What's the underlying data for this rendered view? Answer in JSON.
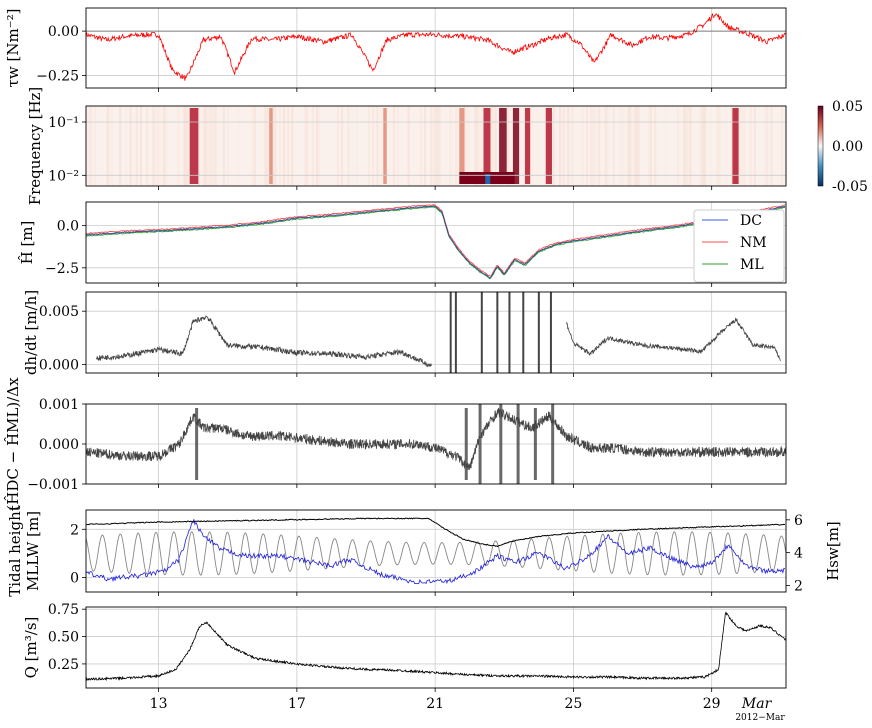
{
  "figure": {
    "date_note": "2012−Mar",
    "x_ticks": [
      {
        "x": 13,
        "label": "13"
      },
      {
        "x": 17,
        "label": "17"
      },
      {
        "x": 21,
        "label": "21"
      },
      {
        "x": 25,
        "label": "25"
      },
      {
        "x": 29,
        "label": "29"
      },
      {
        "x": 30.3,
        "label": "Mar"
      }
    ],
    "x_range": [
      10.9,
      31.15
    ]
  },
  "colors": {
    "tau": "#ff0000",
    "dark": "#444444",
    "dc": "#3b5bdb",
    "nm": "#ff4d4d",
    "ml": "#2ca02c",
    "tide": "#000000",
    "mllw": "#888888",
    "hsw": "#1f1fdd",
    "grid": "#cccccc"
  },
  "panels": {
    "tau": {
      "ylabel": "τw [Nm⁻²]",
      "ylim": [
        -0.32,
        0.13
      ],
      "ticks": [
        {
          "v": 0.0,
          "label": "0.00"
        },
        {
          "v": -0.25,
          "label": "−0.25"
        }
      ]
    },
    "spectro": {
      "ylabel": "Frequency [Hz]",
      "ylim_log": [
        -2.2,
        -0.7
      ],
      "ticks": [
        {
          "v": -1,
          "label": "10⁻¹"
        },
        {
          "v": -2,
          "label": "10⁻²"
        }
      ],
      "colorbar": {
        "ticks": [
          {
            "v": 0.05,
            "label": "0.05"
          },
          {
            "v": 0.0,
            "label": "0.00"
          },
          {
            "v": -0.05,
            "label": "-0.05"
          }
        ]
      }
    },
    "hhat": {
      "ylabel": "Ĥ [m]",
      "ylim": [
        -3.4,
        1.4
      ],
      "ticks": [
        {
          "v": 0.0,
          "label": "0.0"
        },
        {
          "v": -2.5,
          "label": "−2.5"
        }
      ],
      "legend": [
        "DC",
        "NM",
        "ML"
      ]
    },
    "dhdt": {
      "ylabel": "dh/dt [m/h]",
      "ylim": [
        -0.0008,
        0.0068
      ],
      "ticks": [
        {
          "v": 0.005,
          "label": "0.005"
        },
        {
          "v": 0.0,
          "label": "0.000"
        }
      ]
    },
    "diff": {
      "ylabel": "(ĤDC − ĤML)/Δx",
      "ylim": [
        -0.001,
        0.001
      ],
      "ticks": [
        {
          "v": 0.001,
          "label": "0.001"
        },
        {
          "v": 0.0,
          "label": "0.000"
        },
        {
          "v": -0.001,
          "label": "−0.001"
        }
      ]
    },
    "tide": {
      "ylabel1": "Tidal height",
      "ylabel2": "MLLW [m]",
      "ylim": [
        -0.6,
        2.8
      ],
      "ticks": [
        {
          "v": 2,
          "label": "2"
        },
        {
          "v": 0,
          "label": "0"
        }
      ],
      "ylabel_right": "Hsw[m]",
      "ylim_right": [
        1.6,
        6.6
      ],
      "ticks_right": [
        {
          "v": 6,
          "label": "6"
        },
        {
          "v": 4,
          "label": "4"
        },
        {
          "v": 2,
          "label": "2"
        }
      ]
    },
    "q": {
      "ylabel": "Q [m³/s]",
      "ylim": [
        0.03,
        0.77
      ],
      "ticks": [
        {
          "v": 0.75,
          "label": "0.75"
        },
        {
          "v": 0.5,
          "label": "0.50"
        },
        {
          "v": 0.25,
          "label": "0.25"
        }
      ]
    }
  },
  "chart_data": [
    {
      "type": "line",
      "ylabel": "τw [Nm⁻²]",
      "series": [
        {
          "x": [
            10.9,
            11.5,
            12,
            12.6,
            13.0,
            13.4,
            13.8,
            14.3,
            14.8,
            15.2,
            15.7,
            16.3,
            17.0,
            17.8,
            18.6,
            19.2,
            19.6,
            20.2,
            21.0,
            21.8,
            22.5,
            23.2,
            23.8,
            24.3,
            24.8,
            25.2,
            25.6,
            26.1,
            26.7,
            27.2,
            27.7,
            28.3,
            28.8,
            29.1,
            29.5,
            30.0,
            30.6,
            31.15
          ],
          "y": [
            -0.02,
            -0.05,
            -0.03,
            -0.02,
            -0.02,
            -0.22,
            -0.27,
            -0.05,
            -0.03,
            -0.23,
            -0.04,
            -0.05,
            -0.03,
            -0.06,
            -0.02,
            -0.22,
            -0.05,
            -0.02,
            -0.02,
            -0.03,
            -0.05,
            -0.12,
            -0.08,
            -0.04,
            -0.02,
            -0.07,
            -0.18,
            -0.02,
            -0.08,
            -0.03,
            -0.04,
            -0.02,
            0.04,
            0.1,
            0.02,
            -0.01,
            -0.06,
            -0.02
          ]
        }
      ]
    },
    {
      "type": "heatmap",
      "ylabel": "Frequency [Hz]",
      "bands": [
        {
          "x": 13.9,
          "w": 0.25,
          "v": 0.03
        },
        {
          "x": 16.2,
          "w": 0.1,
          "v": 0.01
        },
        {
          "x": 19.5,
          "w": 0.1,
          "v": 0.01
        },
        {
          "x": 21.7,
          "w": 0.15,
          "v": 0.02
        },
        {
          "x": 22.4,
          "w": 0.2,
          "v": 0.03
        },
        {
          "x": 22.85,
          "w": 0.22,
          "v": 0.05
        },
        {
          "x": 23.25,
          "w": 0.18,
          "v": 0.05
        },
        {
          "x": 23.6,
          "w": 0.15,
          "v": 0.04
        },
        {
          "x": 24.2,
          "w": 0.18,
          "v": 0.04
        },
        {
          "x": 29.6,
          "w": 0.18,
          "v": 0.035
        }
      ]
    },
    {
      "type": "line",
      "ylabel": "Ĥ [m]",
      "series": [
        {
          "name": "DC",
          "x": [
            10.9,
            12,
            13.5,
            15,
            16,
            17,
            18,
            19,
            20,
            20.5,
            21.0,
            21.2,
            21.4,
            21.7,
            22.0,
            22.3,
            22.6,
            22.8,
            23.0,
            23.3,
            23.6,
            24.0,
            24.5,
            25,
            26,
            27,
            28,
            29,
            30,
            31.15
          ],
          "y": [
            -0.55,
            -0.4,
            -0.25,
            -0.05,
            0.15,
            0.45,
            0.6,
            0.8,
            1.0,
            1.1,
            1.15,
            0.8,
            -0.6,
            -1.5,
            -2.2,
            -2.7,
            -3.1,
            -2.4,
            -2.9,
            -2.0,
            -2.3,
            -1.5,
            -1.1,
            -0.9,
            -0.6,
            -0.3,
            -0.05,
            0.3,
            0.7,
            1.15
          ]
        },
        {
          "name": "NM",
          "x": [
            10.9,
            31.15
          ],
          "y": [
            -0.55,
            1.15
          ]
        },
        {
          "name": "ML",
          "x": [
            10.9,
            31.15
          ],
          "y": [
            -0.55,
            1.15
          ]
        }
      ]
    },
    {
      "type": "line",
      "ylabel": "dh/dt [m/h]",
      "series": [
        {
          "x": [
            11.2,
            12,
            13,
            13.7,
            14.0,
            14.4,
            15,
            16,
            17,
            18,
            19,
            20,
            20.8,
            21.5,
            21.8,
            22.2,
            22.6,
            23.0,
            23.5,
            24,
            24.5,
            25,
            25.5,
            26,
            27,
            28,
            28.7,
            29.2,
            29.7,
            30.2,
            30.8,
            31.0
          ],
          "y": [
            0.0006,
            0.0008,
            0.0014,
            0.001,
            0.004,
            0.0045,
            0.0018,
            0.0016,
            0.0011,
            0.001,
            0.0007,
            0.0012,
            0.0,
            -0.0008,
            0.0068,
            -0.0008,
            0.0068,
            0.0068,
            -0.0008,
            0.0068,
            0.0068,
            0.002,
            0.001,
            0.0025,
            0.0018,
            0.0015,
            0.0012,
            0.0028,
            0.0042,
            0.0018,
            0.0016,
            0.0004
          ]
        }
      ]
    },
    {
      "type": "line",
      "ylabel": "(ĤDC − ĤML)/Δx",
      "series": [
        {
          "x": [
            10.9,
            12,
            13,
            13.6,
            14.0,
            14.3,
            14.8,
            15.5,
            16.5,
            17.5,
            18.5,
            19.5,
            20.5,
            21.0,
            21.6,
            22.0,
            22.3,
            22.8,
            23.3,
            23.8,
            24.3,
            24.8,
            25.5,
            26.2,
            27,
            28,
            29,
            30,
            31.15
          ],
          "y": [
            -0.0002,
            -0.0003,
            -0.0003,
            0.0,
            0.0007,
            0.0004,
            0.0004,
            0.0002,
            0.0002,
            0.0001,
            0.0,
            0.0,
            0.0,
            -0.0001,
            -0.0003,
            -0.0006,
            0.0002,
            0.0008,
            0.0006,
            0.0004,
            0.0007,
            0.0002,
            -0.0001,
            -0.0001,
            -0.0002,
            -0.0002,
            -0.0002,
            -0.0002,
            -0.0002
          ]
        }
      ]
    },
    {
      "type": "line",
      "ylabel": "Tidal height MLLW [m]",
      "series": [
        {
          "name": "",
          "x": [
            10.9,
            13,
            15,
            17,
            19,
            20.8,
            21.3,
            21.8,
            22.3,
            22.8,
            23.2,
            23.6,
            24,
            25,
            27,
            29,
            31.15
          ],
          "y": [
            2.2,
            2.3,
            2.35,
            2.4,
            2.45,
            2.45,
            2.0,
            1.6,
            1.4,
            1.3,
            1.5,
            1.6,
            1.7,
            1.85,
            2.0,
            2.1,
            2.2
          ]
        },
        {
          "name": "",
          "period_days": 0.517,
          "amp_low": 0.0,
          "amp_high": 2.0
        },
        {
          "name": "",
          "axis": "right",
          "x": [
            10.9,
            11.5,
            12.5,
            13.2,
            13.6,
            14.0,
            14.3,
            14.8,
            15.5,
            16.5,
            17.5,
            18.0,
            18.5,
            19.5,
            20.5,
            21.5,
            22.2,
            22.8,
            23.3,
            24.0,
            24.8,
            25.5,
            26.0,
            26.6,
            27.2,
            27.8,
            28.5,
            29.0,
            29.5,
            30.0,
            30.5,
            31.15
          ],
          "y": [
            2.8,
            2.4,
            2.6,
            2.9,
            3.6,
            6.0,
            5.0,
            4.2,
            3.8,
            3.8,
            3.4,
            3.2,
            3.6,
            2.6,
            2.2,
            2.3,
            2.9,
            3.8,
            3.4,
            4.0,
            3.0,
            3.9,
            5.0,
            3.9,
            4.3,
            3.7,
            3.1,
            3.4,
            4.5,
            3.2,
            2.9,
            2.9
          ]
        }
      ]
    },
    {
      "type": "line",
      "ylabel": "Q [m³/s]",
      "series": [
        {
          "x": [
            10.9,
            12,
            13,
            13.5,
            13.9,
            14.2,
            14.4,
            14.7,
            15.0,
            15.8,
            17,
            18,
            19,
            20,
            21,
            22,
            23,
            24,
            25,
            26,
            27,
            28,
            28.8,
            29.2,
            29.4,
            29.7,
            30.0,
            30.4,
            30.7,
            31.15
          ],
          "y": [
            0.11,
            0.12,
            0.14,
            0.2,
            0.38,
            0.6,
            0.63,
            0.52,
            0.42,
            0.3,
            0.25,
            0.22,
            0.2,
            0.19,
            0.17,
            0.15,
            0.14,
            0.14,
            0.13,
            0.13,
            0.12,
            0.12,
            0.13,
            0.2,
            0.72,
            0.6,
            0.55,
            0.6,
            0.58,
            0.47
          ]
        }
      ]
    }
  ]
}
